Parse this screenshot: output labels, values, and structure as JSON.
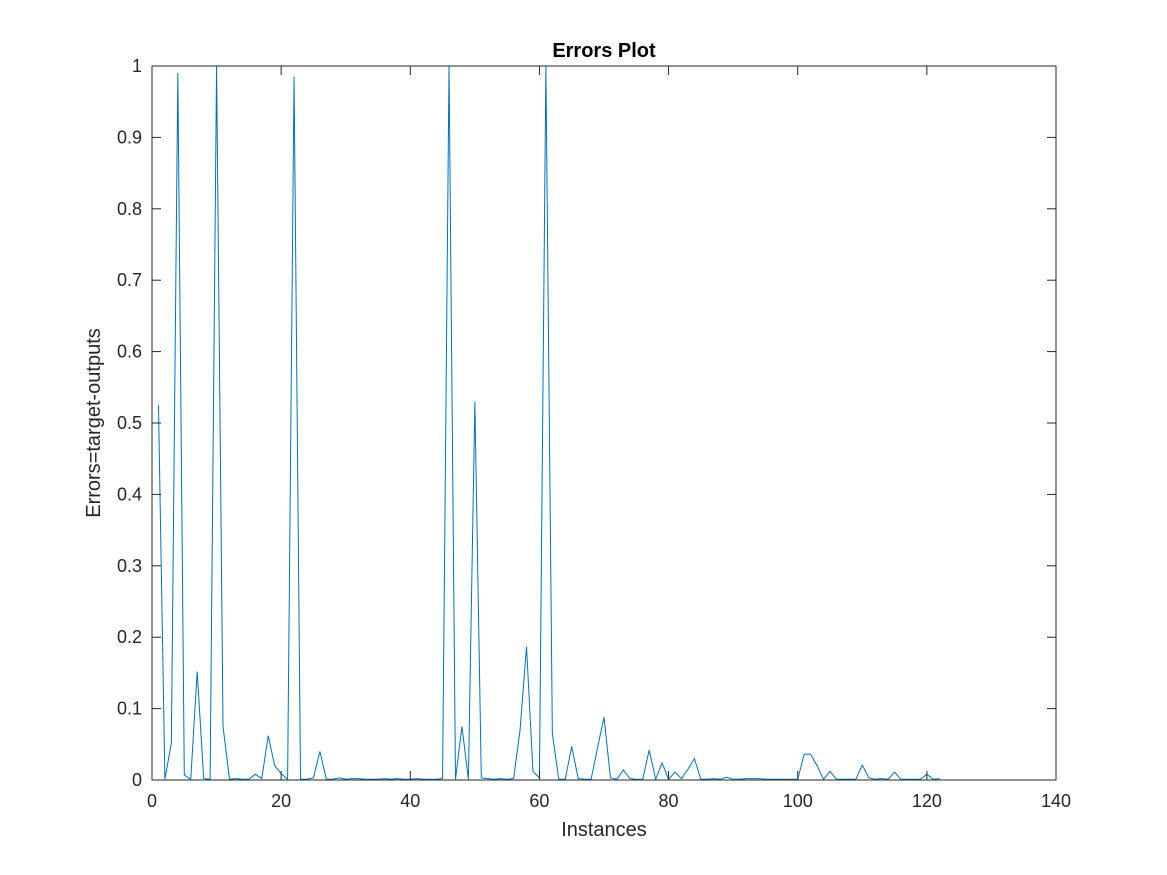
{
  "chart_data": {
    "type": "line",
    "title": "Errors Plot",
    "xlabel": "Instances",
    "ylabel": "Errors=target-outputs",
    "xlim": [
      0,
      140
    ],
    "ylim": [
      0,
      1
    ],
    "xticks": [
      0,
      20,
      40,
      60,
      80,
      100,
      120,
      140
    ],
    "yticks": [
      0,
      0.1,
      0.2,
      0.3,
      0.4,
      0.5,
      0.6,
      0.7,
      0.8,
      0.9,
      1
    ],
    "xtick_labels": [
      "0",
      "20",
      "40",
      "60",
      "80",
      "100",
      "120",
      "140"
    ],
    "ytick_labels": [
      "0",
      "0.1",
      "0.2",
      "0.3",
      "0.4",
      "0.5",
      "0.6",
      "0.7",
      "0.8",
      "0.9",
      "1"
    ],
    "grid": false,
    "series": [
      {
        "color": "#0072bd",
        "x": [
          1,
          2,
          3,
          4,
          5,
          6,
          7,
          8,
          9,
          10,
          11,
          12,
          13,
          14,
          15,
          16,
          17,
          18,
          19,
          20,
          21,
          22,
          23,
          24,
          25,
          26,
          27,
          28,
          29,
          30,
          31,
          32,
          33,
          34,
          35,
          36,
          37,
          38,
          39,
          40,
          41,
          42,
          43,
          44,
          45,
          46,
          47,
          48,
          49,
          50,
          51,
          52,
          53,
          54,
          55,
          56,
          57,
          58,
          59,
          60,
          61,
          62,
          63,
          64,
          65,
          66,
          67,
          68,
          69,
          70,
          71,
          72,
          73,
          74,
          75,
          76,
          77,
          78,
          79,
          80,
          81,
          82,
          83,
          84,
          85,
          86,
          87,
          88,
          89,
          90,
          91,
          92,
          93,
          94,
          95,
          96,
          97,
          98,
          99,
          100,
          101,
          102,
          103,
          104,
          105,
          106,
          107,
          108,
          109,
          110,
          111,
          112,
          113,
          114,
          115,
          116,
          117,
          118,
          119,
          120,
          121,
          122
        ],
        "y": [
          0.525,
          0.001,
          0.052,
          0.99,
          0.007,
          0.001,
          0.152,
          0.002,
          0.001,
          1.0,
          0.075,
          0.001,
          0.002,
          0.001,
          0.001,
          0.008,
          0.002,
          0.062,
          0.02,
          0.009,
          0.001,
          0.985,
          0.001,
          0.001,
          0.003,
          0.04,
          0.001,
          0.001,
          0.003,
          0.001,
          0.002,
          0.002,
          0.001,
          0.001,
          0.001,
          0.002,
          0.001,
          0.002,
          0.001,
          0.001,
          0.002,
          0.001,
          0.001,
          0.001,
          0.002,
          1.0,
          0.001,
          0.075,
          0.001,
          0.53,
          0.003,
          0.002,
          0.001,
          0.002,
          0.001,
          0.002,
          0.07,
          0.187,
          0.012,
          0.003,
          1.0,
          0.065,
          0.001,
          0.001,
          0.047,
          0.002,
          0.001,
          0.001,
          0.045,
          0.088,
          0.003,
          0.001,
          0.014,
          0.002,
          0.001,
          0.001,
          0.042,
          0.001,
          0.024,
          0.001,
          0.011,
          0.002,
          0.015,
          0.03,
          0.001,
          0.001,
          0.002,
          0.001,
          0.004,
          0.001,
          0.001,
          0.002,
          0.002,
          0.002,
          0.001,
          0.001,
          0.001,
          0.001,
          0.001,
          0.001,
          0.036,
          0.036,
          0.02,
          0.001,
          0.012,
          0.001,
          0.001,
          0.001,
          0.001,
          0.021,
          0.003,
          0.001,
          0.002,
          0.001,
          0.011,
          0.001,
          0.001,
          0.001,
          0.001,
          0.008,
          0.001,
          0.002
        ]
      }
    ]
  }
}
